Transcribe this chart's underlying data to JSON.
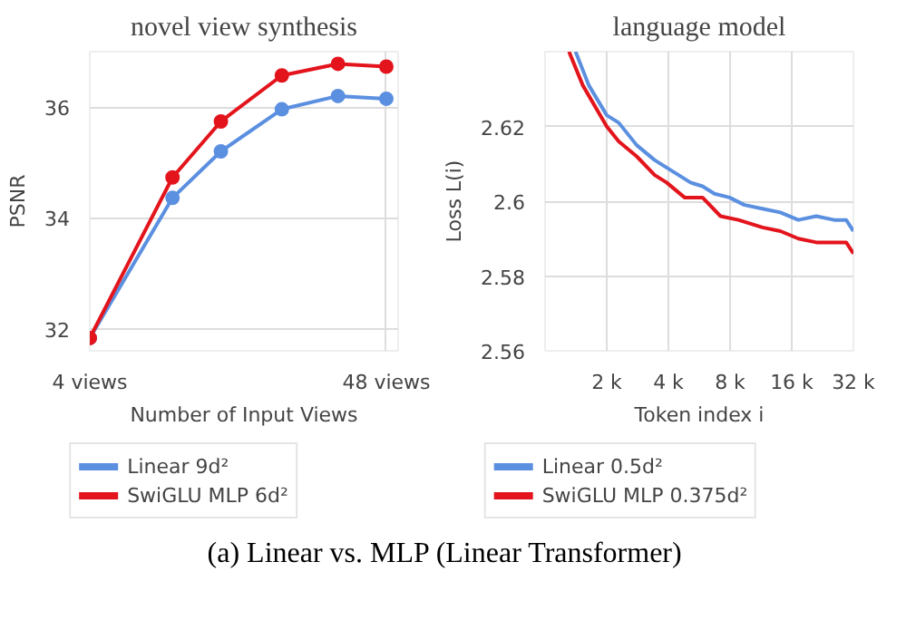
{
  "chart_data": [
    {
      "type": "line",
      "title": "novel view synthesis",
      "xlabel": "Number of Input Views",
      "ylabel": "PSNR",
      "log": "x",
      "x": [
        4,
        8,
        12,
        20,
        32,
        48
      ],
      "xlim": [
        4,
        53
      ],
      "xticks": [
        {
          "value": 4,
          "label": "4 views"
        },
        {
          "value": 48,
          "label": "48 views"
        }
      ],
      "ylim": [
        31.6,
        37
      ],
      "yticks": [
        32,
        34,
        36
      ],
      "grid": true,
      "legend": "bottom",
      "marker": "circle",
      "annotations": [
        "(a) Linear vs. MLP (Linear Transformer)"
      ],
      "series": [
        {
          "name": "Linear 9d²",
          "color": "#5b8fe0",
          "values": [
            31.83,
            34.36,
            35.2,
            35.96,
            36.2,
            36.15
          ]
        },
        {
          "name": "SwiGLU MLP 6d²",
          "color": "#e3141c",
          "values": [
            31.83,
            34.73,
            35.74,
            36.57,
            36.78,
            36.73
          ]
        }
      ]
    },
    {
      "type": "line",
      "title": "language model",
      "xlabel": "Token index i",
      "ylabel": "Loss L(i)",
      "log": "x",
      "xlim": [
        1000,
        32000
      ],
      "xticks": [
        {
          "value": 2000,
          "label": "2 k"
        },
        {
          "value": 4000,
          "label": "4 k"
        },
        {
          "value": 8000,
          "label": "8 k"
        },
        {
          "value": 16000,
          "label": "16 k"
        },
        {
          "value": 32000,
          "label": "32 k"
        }
      ],
      "ylim": [
        2.56,
        2.64
      ],
      "yticks": [
        2.56,
        2.58,
        2.6,
        2.62
      ],
      "grid": true,
      "legend": "bottom",
      "series": [
        {
          "name": "Linear 0.5d²",
          "color": "#5b8fe0",
          "x": [
            1409,
            1635,
            2000,
            2288,
            2800,
            3427,
            3920,
            4485,
            5130,
            5869,
            6716,
            7946,
            9402,
            11503,
            14082,
            17232,
            21083,
            25796,
            29507,
            32000
          ],
          "values": [
            2.64,
            2.631,
            2.623,
            2.621,
            2.615,
            2.611,
            2.609,
            2.607,
            2.605,
            2.604,
            2.602,
            2.601,
            2.599,
            2.598,
            2.597,
            2.595,
            2.596,
            2.595,
            2.595,
            2.592
          ]
        },
        {
          "name": "SwiGLU MLP 0.375d²",
          "color": "#e3141c",
          "x": [
            1309,
            1528,
            2000,
            2288,
            2800,
            3427,
            3920,
            4797,
            5869,
            7184,
            8790,
            11503,
            14082,
            17232,
            21083,
            25796,
            29507,
            32000
          ],
          "values": [
            2.64,
            2.631,
            2.62,
            2.616,
            2.612,
            2.607,
            2.605,
            2.601,
            2.601,
            2.596,
            2.595,
            2.593,
            2.592,
            2.59,
            2.589,
            2.589,
            2.589,
            2.586
          ]
        }
      ]
    }
  ]
}
